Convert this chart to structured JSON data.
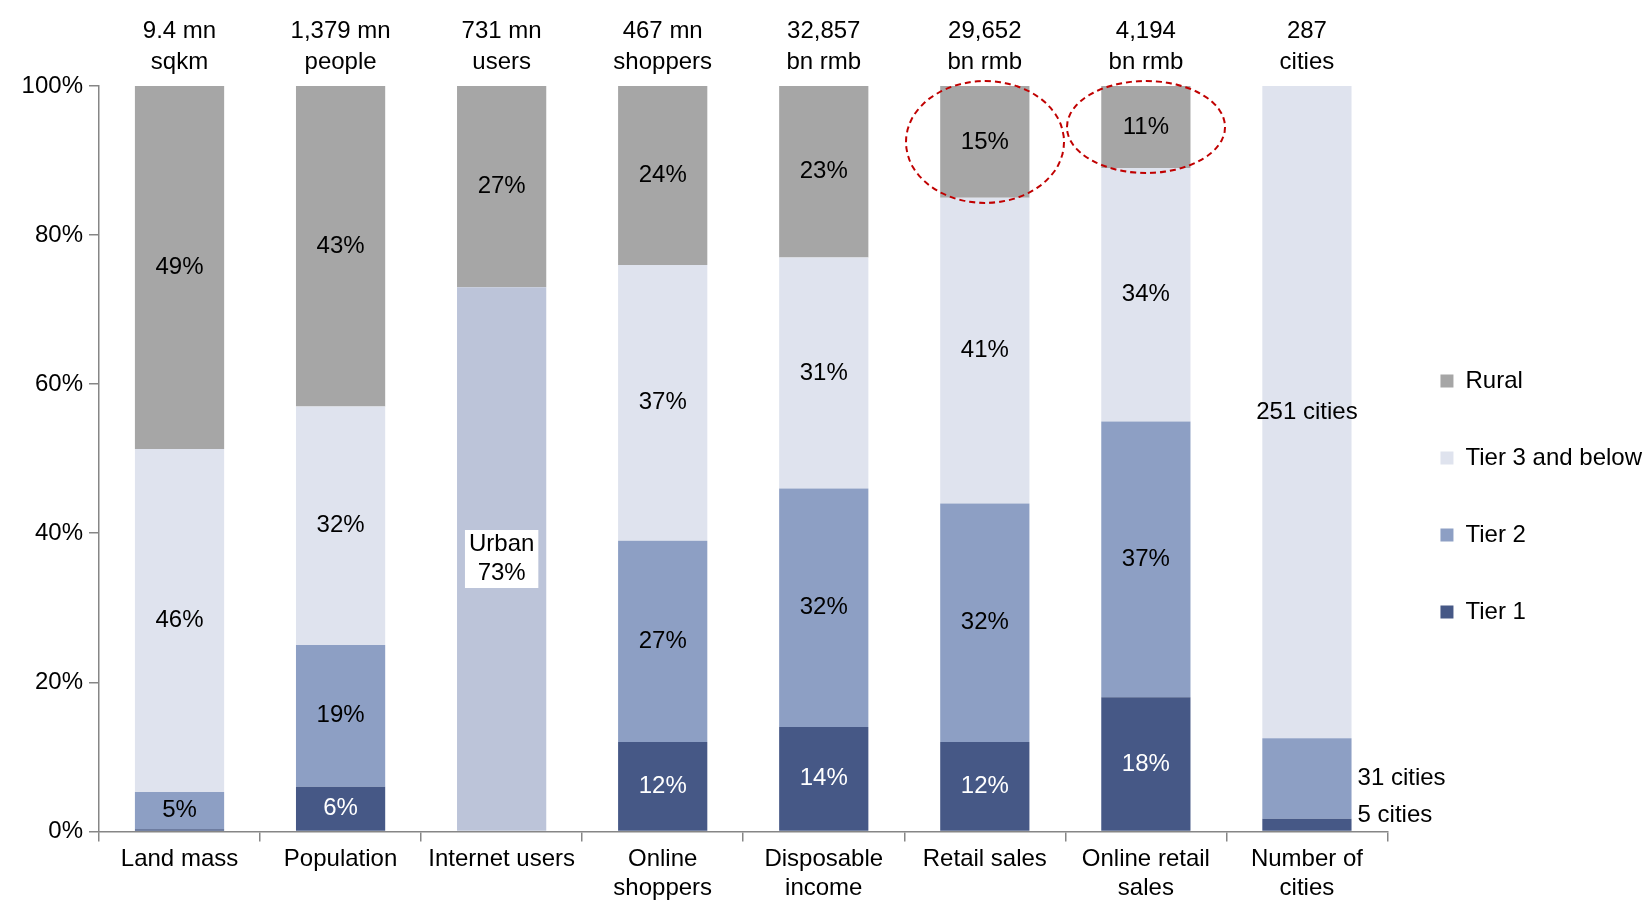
{
  "chart_data": {
    "type": "bar",
    "stacked": true,
    "categories": [
      "Land mass",
      "Population",
      "Internet users",
      "Online shoppers",
      "Disposable income",
      "Retail sales",
      "Online retail sales",
      "Number of cities"
    ],
    "series": [
      {
        "name": "Tier 1",
        "color": "#465886",
        "values": [
          0.3,
          6,
          null,
          12,
          14,
          12,
          18,
          1.7
        ],
        "value_labels": [
          null,
          "6%",
          null,
          "12%",
          "14%",
          "12%",
          "18%",
          null
        ]
      },
      {
        "name": "Tier 2",
        "color": "#8d9fc4",
        "values": [
          5,
          19,
          null,
          27,
          32,
          32,
          37,
          10.8
        ],
        "value_labels": [
          "5%",
          "19%",
          null,
          "27%",
          "32%",
          "32%",
          "37%",
          null
        ]
      },
      {
        "name": "Tier 3 and below",
        "color": "#dfe3ee",
        "values": [
          46,
          32,
          null,
          37,
          31,
          41,
          34,
          87.5
        ],
        "value_labels": [
          "46%",
          "32%",
          null,
          "37%",
          "31%",
          "41%",
          "34%",
          null
        ]
      },
      {
        "name": "Urban",
        "color": "#bcc4d9",
        "values": [
          null,
          null,
          73,
          null,
          null,
          null,
          null,
          null
        ],
        "value_labels": [
          null,
          null,
          "73%",
          null,
          null,
          null,
          null,
          null
        ]
      },
      {
        "name": "Rural",
        "color": "#a6a6a6",
        "values": [
          48.7,
          43,
          27,
          24,
          23,
          15,
          11,
          null
        ],
        "value_labels": [
          "49%",
          "43%",
          "27%",
          "24%",
          "23%",
          "15%",
          "11%",
          null
        ]
      }
    ],
    "annotations": [
      {
        "text": "9.4 mn\nsqkm",
        "x": "Land mass",
        "y": 100
      },
      {
        "text": "1,379 mn\npeople",
        "x": "Population",
        "y": 100
      },
      {
        "text": "731 mn\nusers",
        "x": "Internet users",
        "y": 100
      },
      {
        "text": "467 mn\nshoppers",
        "x": "Online shoppers",
        "y": 100
      },
      {
        "text": "32,857\nbn rmb",
        "x": "Disposable income",
        "y": 100
      },
      {
        "text": "29,652\nbn rmb",
        "x": "Retail sales",
        "y": 100
      },
      {
        "text": "4,194\nbn rmb",
        "x": "Online retail sales",
        "y": 100
      },
      {
        "text": "287\ncities",
        "x": "Number of cities",
        "y": 100
      },
      {
        "text": "5 cities",
        "x": "Number of cities",
        "y": 1.7
      },
      {
        "text": "31 cities",
        "x": "Number of cities",
        "y": 12.5
      },
      "251 cities"
    ],
    "ylim": [
      0,
      100
    ],
    "yticks": [
      {
        "value": 0,
        "label": "0%"
      },
      {
        "value": 20,
        "label": "20%"
      },
      {
        "value": 40,
        "label": "40%"
      },
      {
        "value": 60,
        "label": "60%"
      },
      {
        "value": 80,
        "label": "80%"
      },
      {
        "value": 100,
        "label": "100%"
      }
    ],
    "legend": "right"
  }
}
